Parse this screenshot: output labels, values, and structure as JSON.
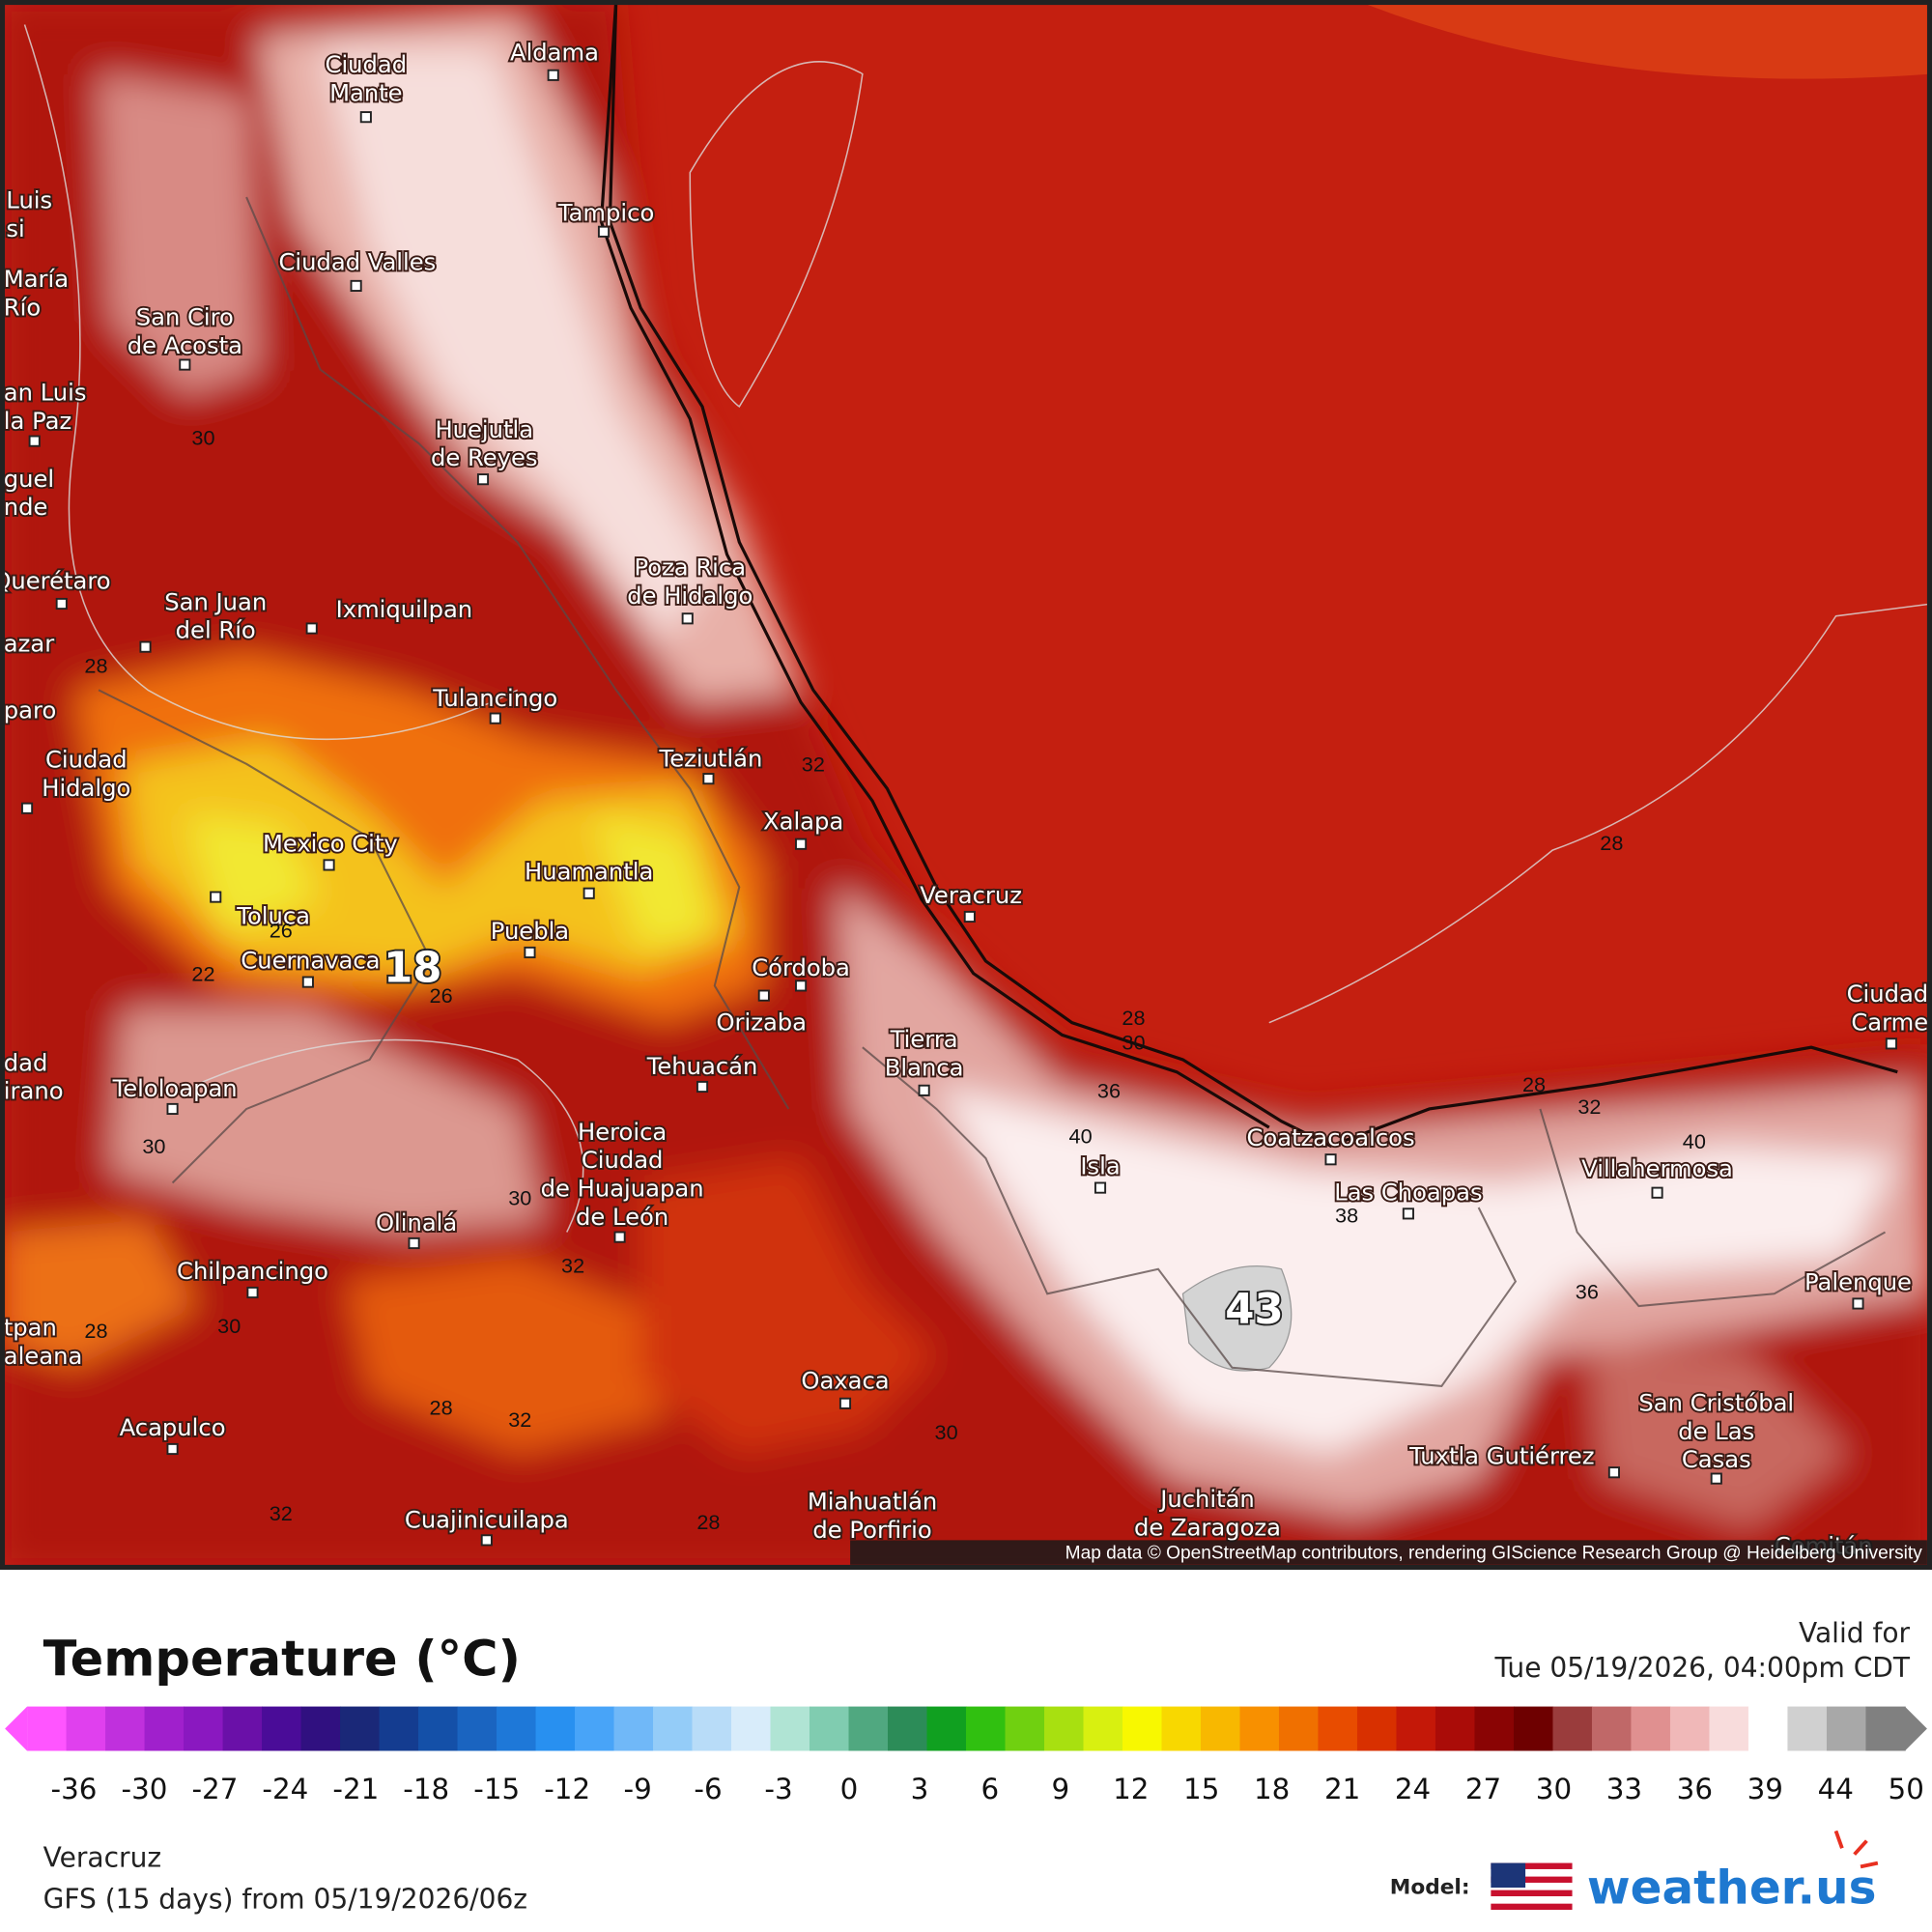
{
  "header": {
    "title": "Temperature (°C)",
    "valid_label": "Valid for",
    "valid_time": "Tue 05/19/2026, 04:00pm CDT"
  },
  "map": {
    "attribution": "Map data © OpenStreetMap contributors, rendering GIScience Research Group @ Heidelberg University",
    "cities": [
      {
        "lines": [
          "Ciudad",
          "Mante"
        ]
      },
      {
        "lines": [
          "Aldama"
        ]
      },
      {
        "lines": [
          "Luis",
          "si"
        ]
      },
      {
        "lines": [
          "Tampico"
        ]
      },
      {
        "lines": [
          "Ciudad Valles"
        ]
      },
      {
        "lines": [
          "María",
          "Río"
        ]
      },
      {
        "lines": [
          "San Ciro",
          "de Acosta"
        ]
      },
      {
        "lines": [
          "an Luis",
          "la Paz"
        ]
      },
      {
        "lines": [
          "Huejutla",
          "de Reyes"
        ]
      },
      {
        "lines": [
          "guel",
          "nde"
        ]
      },
      {
        "lines": [
          "Querétaro"
        ]
      },
      {
        "lines": [
          "San Juan",
          "del Río"
        ]
      },
      {
        "lines": [
          "Ixmiquilpan"
        ]
      },
      {
        "lines": [
          "azar"
        ]
      },
      {
        "lines": [
          "Poza Rica",
          "de Hidalgo"
        ]
      },
      {
        "lines": [
          "paro"
        ]
      },
      {
        "lines": [
          "Tulancingo"
        ]
      },
      {
        "lines": [
          "Ciudad",
          "Hidalgo"
        ]
      },
      {
        "lines": [
          "Teziutlán"
        ]
      },
      {
        "lines": [
          "Xalapa"
        ]
      },
      {
        "lines": [
          "Mexico City"
        ]
      },
      {
        "lines": [
          "Huamantla"
        ]
      },
      {
        "lines": [
          "Veracruz"
        ]
      },
      {
        "lines": [
          "Toluca"
        ]
      },
      {
        "lines": [
          "Puebla"
        ]
      },
      {
        "lines": [
          "Cuernavaca"
        ]
      },
      {
        "lines": [
          "Córdoba"
        ]
      },
      {
        "lines": [
          "Orizaba"
        ]
      },
      {
        "lines": [
          "Tehuacán"
        ]
      },
      {
        "lines": [
          "Tierra",
          "Blanca"
        ]
      },
      {
        "lines": [
          "Ciudad",
          "Carme"
        ]
      },
      {
        "lines": [
          "dad",
          "irano"
        ]
      },
      {
        "lines": [
          "Teloloapan"
        ]
      },
      {
        "lines": [
          "Heroica",
          "Ciudad",
          "de Huajuapan",
          "de León"
        ]
      },
      {
        "lines": [
          "Isla"
        ]
      },
      {
        "lines": [
          "Coatzacoalcos"
        ]
      },
      {
        "lines": [
          "Las Choapas"
        ]
      },
      {
        "lines": [
          "Villahermosa"
        ]
      },
      {
        "lines": [
          "Olinalá"
        ]
      },
      {
        "lines": [
          "Chilpancingo"
        ]
      },
      {
        "lines": [
          "Palenque"
        ]
      },
      {
        "lines": [
          "tpan",
          "aleana"
        ]
      },
      {
        "lines": [
          "Oaxaca"
        ]
      },
      {
        "lines": [
          "San Cristóbal",
          "de Las",
          "Casas"
        ]
      },
      {
        "lines": [
          "Acapulco"
        ]
      },
      {
        "lines": [
          "Tuxtla Gutiérrez"
        ]
      },
      {
        "lines": [
          "Miahuatlán",
          "de Porfirio"
        ]
      },
      {
        "lines": [
          "Juchitán",
          "de Zaragoza"
        ]
      },
      {
        "lines": [
          "Cuajinicuilapa"
        ]
      },
      {
        "lines": [
          "Comitán"
        ]
      }
    ],
    "contours": [
      30,
      28,
      28,
      22,
      26,
      18,
      26,
      30,
      30,
      32,
      28,
      30,
      36,
      40,
      28,
      32,
      40,
      38,
      36,
      43,
      28,
      30,
      32,
      28,
      32,
      30,
      32,
      28
    ]
  },
  "legend": {
    "ticks": [
      -36,
      -30,
      -27,
      -24,
      -21,
      -18,
      -15,
      -12,
      -9,
      -6,
      -3,
      0,
      3,
      6,
      9,
      12,
      15,
      18,
      21,
      24,
      27,
      30,
      33,
      36,
      39,
      44,
      50
    ],
    "colors": [
      "#ff55ff",
      "#e040ee",
      "#c030dd",
      "#a020cc",
      "#8a18c0",
      "#6a10a8",
      "#4a0c98",
      "#301080",
      "#1a2878",
      "#143c90",
      "#1450a8",
      "#1a64c0",
      "#1e78d8",
      "#2890f0",
      "#48a4f8",
      "#70b8f8",
      "#94ccf8",
      "#b8dcf8",
      "#d8ecfa",
      "#b0e4d4",
      "#80ccb0",
      "#50a880",
      "#2c8c58",
      "#10a020",
      "#30c010",
      "#70d010",
      "#a8e010",
      "#d8f010",
      "#f8f800",
      "#f8d800",
      "#f8b800",
      "#f89000",
      "#f07000",
      "#e84c00",
      "#d83000",
      "#c41808",
      "#aa0c08",
      "#8a0404",
      "#6e0000",
      "#9a3c3c",
      "#c06868",
      "#e09090",
      "#f0b8b8",
      "#f8dcdc",
      "#ffffff",
      "#d0d0d0",
      "#a8a8a8",
      "#808080"
    ]
  },
  "footer": {
    "location": "Veracruz",
    "model_run": "GFS (15 days) from 05/19/2026/06z",
    "model_label": "Model:",
    "logo": "weather.us"
  }
}
